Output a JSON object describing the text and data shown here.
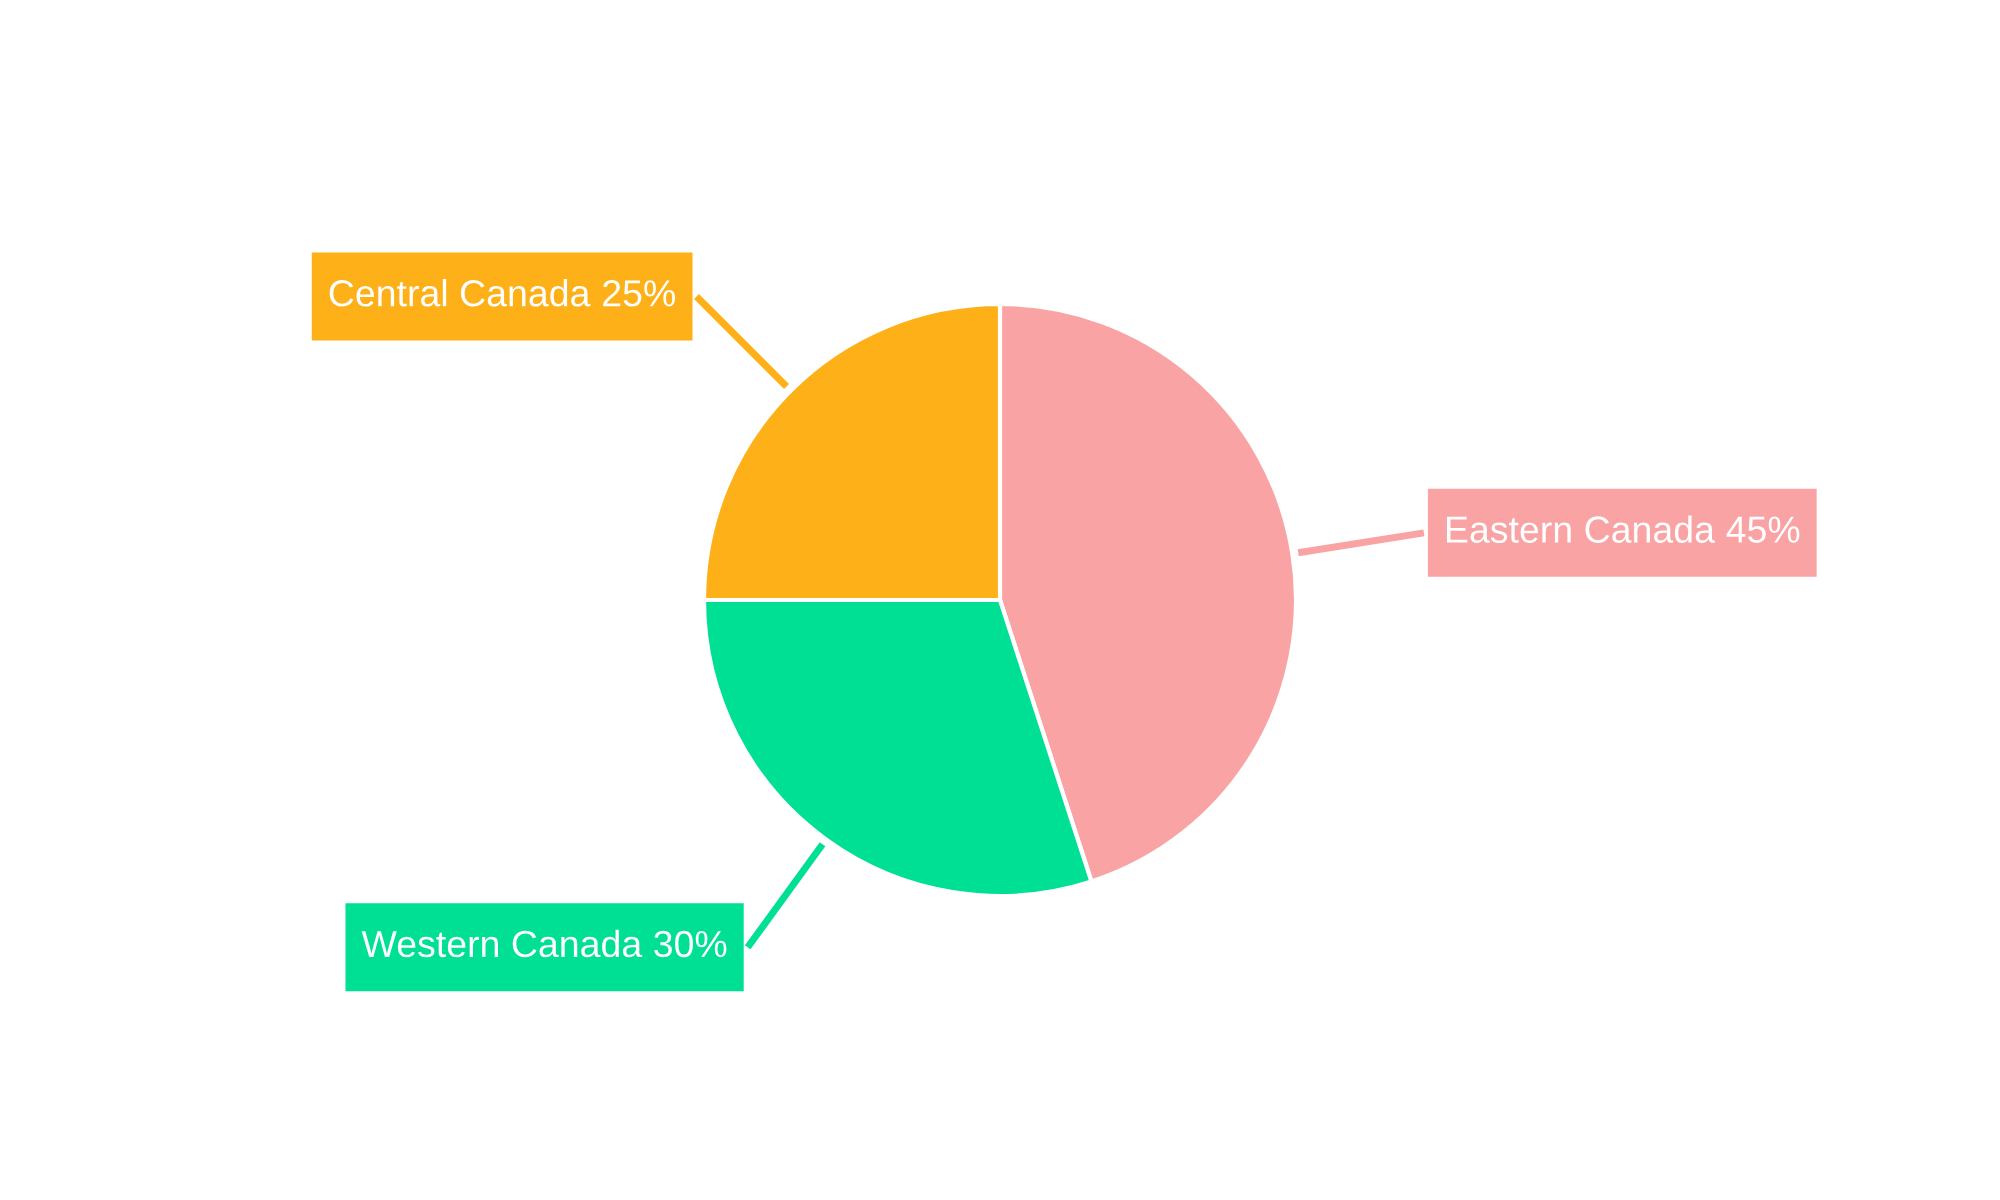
{
  "chart_data": {
    "type": "pie",
    "categories": [
      "Eastern Canada",
      "Western Canada",
      "Central Canada"
    ],
    "values": [
      45,
      30,
      25
    ],
    "value_labels": [
      "45%",
      "30%",
      "25%"
    ],
    "colors": [
      "#f9a3a4",
      "#00e095",
      "#feb019"
    ],
    "legend": false
  }
}
